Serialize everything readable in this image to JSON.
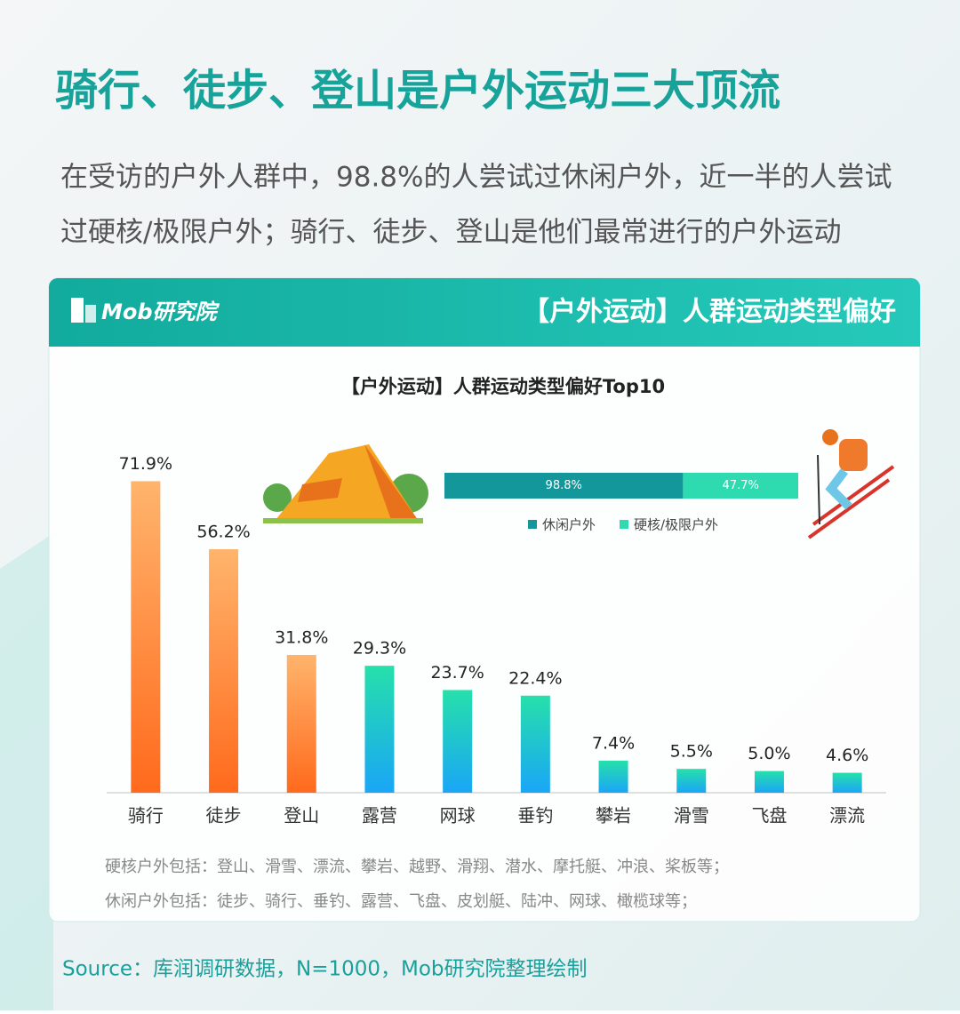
{
  "header": {
    "title": "骑行、徒步、登山是户外运动三大顶流",
    "subtitle_lines": [
      "在受访的户外人群中，98.8%的人尝试过休闲户外，近一半的人尝试",
      "过硬核/极限户外；骑行、徒步、登山是他们最常进行的户外运动"
    ]
  },
  "panel": {
    "brand": "Mob研究院",
    "banner": "【户外运动】人群运动类型偏好"
  },
  "chart_data": [
    {
      "type": "bar",
      "title": "【户外运动】人群运动类型偏好Top10",
      "categories": [
        "骑行",
        "徒步",
        "登山",
        "露营",
        "网球",
        "垂钓",
        "攀岩",
        "滑雪",
        "飞盘",
        "漂流"
      ],
      "values": [
        71.9,
        56.2,
        31.8,
        29.3,
        23.7,
        22.4,
        7.4,
        5.5,
        5.0,
        4.6
      ],
      "value_labels": [
        "71.9%",
        "56.2%",
        "31.8%",
        "29.3%",
        "23.7%",
        "22.4%",
        "7.4%",
        "5.5%",
        "5.0%",
        "4.6%"
      ],
      "gradients": [
        [
          "#ffb46c",
          "#ff6a1c"
        ],
        [
          "#ffb46c",
          "#ff6a1c"
        ],
        [
          "#ffb46c",
          "#ff6a1c"
        ],
        [
          "#26e0aa",
          "#1aa6f7"
        ],
        [
          "#26e0aa",
          "#1aa6f7"
        ],
        [
          "#26e0aa",
          "#1aa6f7"
        ],
        [
          "#26e0aa",
          "#1aa6f7"
        ],
        [
          "#26e0aa",
          "#1aa6f7"
        ],
        [
          "#26e0aa",
          "#1aa6f7"
        ],
        [
          "#26e0aa",
          "#1aa6f7"
        ]
      ],
      "ylim": [
        0,
        80
      ]
    },
    {
      "type": "stacked_hbar",
      "series": [
        {
          "name": "休闲户外",
          "color": "#14979b",
          "values": [
            98.8
          ],
          "value_labels": [
            "98.8%"
          ]
        },
        {
          "name": "硬核/极限户外",
          "color": "#2edbb1",
          "values": [
            47.7
          ],
          "value_labels": [
            "47.7%"
          ]
        }
      ],
      "xlim": [
        0,
        146.5
      ]
    }
  ],
  "notes": [
    "硬核户外包括：登山、滑雪、漂流、攀岩、越野、滑翔、潜水、摩托艇、冲浪、桨板等；",
    "休闲户外包括：徒步、骑行、垂钓、露营、飞盘、皮划艇、陆冲、网球、橄榄球等；"
  ],
  "source": "Source：库润调研数据，N=1000，Mob研究院整理绘制"
}
